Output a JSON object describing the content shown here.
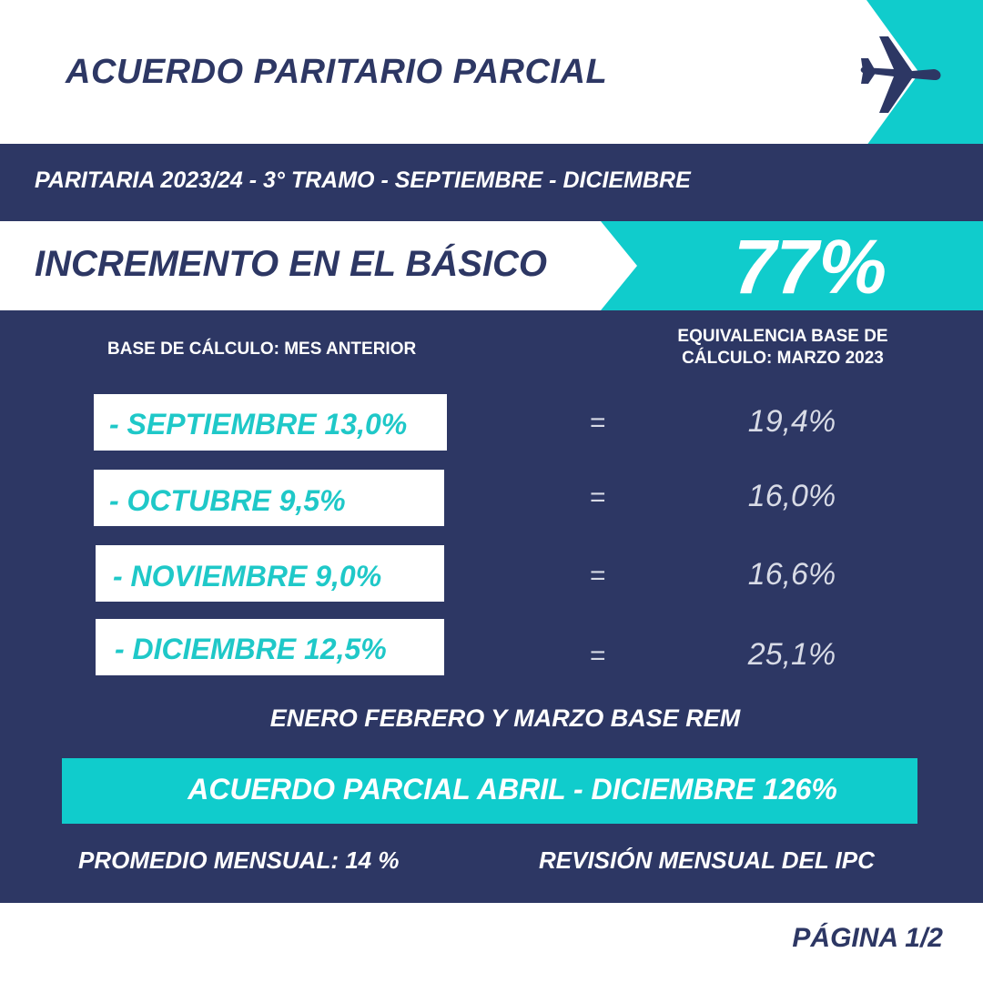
{
  "header": {
    "title": "ACUERDO PARITARIO PARCIAL",
    "icon": "airplane-icon",
    "accent_color": "#10cccc",
    "navy_color": "#2d3764"
  },
  "subtitle": "PARITARIA 2023/24 - 3° TRAMO - SEPTIEMBRE - DICIEMBRE",
  "increment": {
    "label": "INCREMENTO EN EL BÁSICO",
    "value": "77%"
  },
  "columns": {
    "left_label": "BASE DE CÁLCULO: MES ANTERIOR",
    "right_label": "EQUIVALENCIA BASE DE CÁLCULO: MARZO 2023"
  },
  "months": [
    {
      "label": "- SEPTIEMBRE 13,0%",
      "eq": "=",
      "equivalence": "19,4%"
    },
    {
      "label": "- OCTUBRE 9,5%",
      "eq": "=",
      "equivalence": "16,0%"
    },
    {
      "label": "- NOVIEMBRE 9,0%",
      "eq": "=",
      "equivalence": "16,6%"
    },
    {
      "label": "- DICIEMBRE 12,5%",
      "eq": "=",
      "equivalence": "25,1%"
    }
  ],
  "rem_note": "ENERO FEBRERO Y MARZO BASE REM",
  "agreement": "ACUERDO PARCIAL ABRIL - DICIEMBRE 126%",
  "footer": {
    "average": "PROMEDIO MENSUAL: 14 %",
    "review": "REVISIÓN MENSUAL DEL IPC",
    "page": "PÁGINA 1/2"
  }
}
